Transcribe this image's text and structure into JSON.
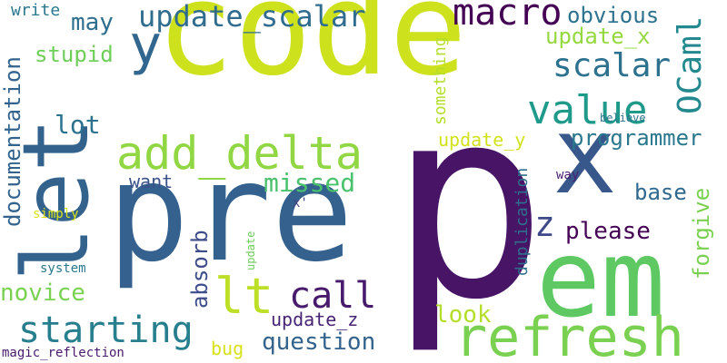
{
  "words": [
    {
      "text": "p",
      "color": "#471466"
    },
    {
      "text": "code",
      "color": "#cde11d"
    },
    {
      "text": "pre",
      "color": "#34618d"
    },
    {
      "text": "let",
      "color": "#33638d"
    },
    {
      "text": "em",
      "color": "#5ec962"
    },
    {
      "text": "x",
      "color": "#38588c"
    },
    {
      "text": "refresh",
      "color": "#7ad151"
    },
    {
      "text": "add_delta",
      "color": "#90d743"
    },
    {
      "text": "value",
      "color": "#1f9a8a"
    },
    {
      "text": "update_scalar",
      "color": "#2f6c8e"
    },
    {
      "text": "macro",
      "color": "#440154"
    },
    {
      "text": "scalar",
      "color": "#2c718e"
    },
    {
      "text": "OCaml",
      "color": "#23898e"
    },
    {
      "text": "lt",
      "color": "#bddf26"
    },
    {
      "text": "y",
      "color": "#31668e"
    },
    {
      "text": "starting",
      "color": "#277f8e"
    },
    {
      "text": "call",
      "color": "#481a6c"
    },
    {
      "text": "z",
      "color": "#3e4989"
    },
    {
      "text": "may",
      "color": "#2e6e8e"
    },
    {
      "text": "obvious",
      "color": "#2c728e"
    },
    {
      "text": "update_x",
      "color": "#95d840"
    },
    {
      "text": "programmer",
      "color": "#2a788e"
    },
    {
      "text": "update_y",
      "color": "#d2e21b"
    },
    {
      "text": "documentation",
      "color": "#33638d"
    },
    {
      "text": "stupid",
      "color": "#6ece58"
    },
    {
      "text": "lot",
      "color": "#2c728e"
    },
    {
      "text": "missed",
      "color": "#4ac16d"
    },
    {
      "text": "want",
      "color": "#3b528b"
    },
    {
      "text": "base",
      "color": "#31688e"
    },
    {
      "text": "please",
      "color": "#440154"
    },
    {
      "text": "forgive",
      "color": "#7ad151"
    },
    {
      "text": "absorb",
      "color": "#3e4c8a"
    },
    {
      "text": "novice",
      "color": "#7ad151"
    },
    {
      "text": "question",
      "color": "#33638d"
    },
    {
      "text": "look",
      "color": "#b5de2b"
    },
    {
      "text": "update_z",
      "color": "#482475"
    },
    {
      "text": "bug",
      "color": "#d8e219"
    },
    {
      "text": "write",
      "color": "#2a788e"
    },
    {
      "text": "something",
      "color": "#b5de2b"
    },
    {
      "text": "duplication",
      "color": "#2e6f8e"
    },
    {
      "text": "way",
      "color": "#481f70"
    },
    {
      "text": "believe",
      "color": "#2c718e"
    },
    {
      "text": "simply",
      "color": "#dde318"
    },
    {
      "text": "x'",
      "color": "#404387"
    },
    {
      "text": "update",
      "color": "#6ccd5a"
    },
    {
      "text": "system",
      "color": "#2a788e"
    },
    {
      "text": "magic_reflection",
      "color": "#481a6c"
    }
  ]
}
